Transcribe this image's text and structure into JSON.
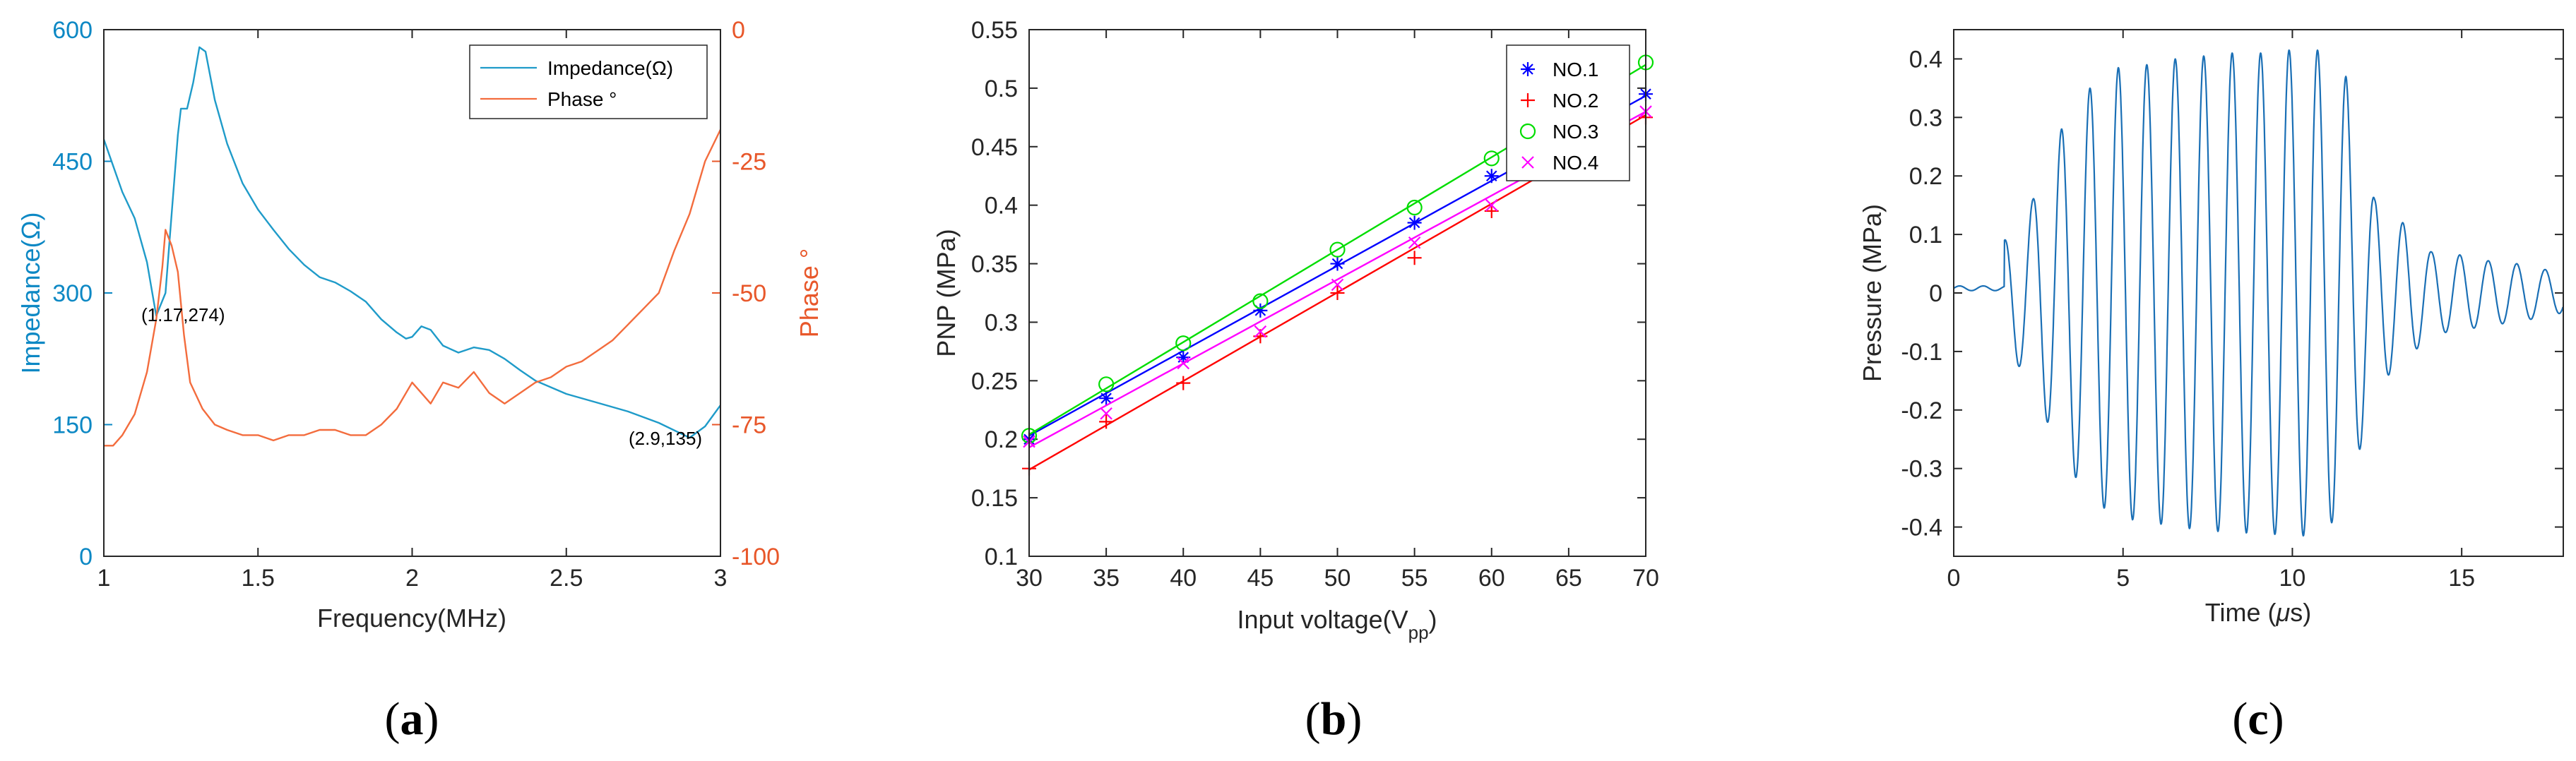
{
  "chart_data": [
    {
      "panel": "a",
      "type": "line",
      "panel_label": "(a)",
      "panel_letter": "a",
      "xlabel": "Frequency(MHz)",
      "ylabel_left": "Impedance(Ω)",
      "ylabel_right": "Phase °",
      "xlim": [
        1,
        3
      ],
      "ylim_left": [
        0,
        600
      ],
      "ylim_right": [
        -100,
        0
      ],
      "xticks": [
        "1",
        "1.5",
        "2",
        "2.5",
        "3"
      ],
      "xtick_values": [
        1,
        1.5,
        2,
        2.5,
        3
      ],
      "yticks_left": [
        "0",
        "150",
        "300",
        "450",
        "600"
      ],
      "ytick_values_left": [
        0,
        150,
        300,
        450,
        600
      ],
      "yticks_right": [
        "-100",
        "-75",
        "-50",
        "-25",
        "0"
      ],
      "ytick_values_right": [
        -100,
        -75,
        -50,
        -25,
        0
      ],
      "colors": {
        "impedance": "#1f9bc9",
        "phase": "#f36c3d",
        "left_axis": "#0d88c4",
        "right_axis": "#e8572a"
      },
      "legend": [
        "Impedance(Ω)",
        "Phase °"
      ],
      "legend_position": "top-right",
      "annotations": [
        {
          "text": "(1.17,274)",
          "x": 1.17,
          "y": 274
        },
        {
          "text": "(2.9,135)",
          "x": 2.9,
          "y": 135
        }
      ],
      "series": [
        {
          "name": "Impedance(Ω)",
          "axis": "left",
          "x": [
            1.0,
            1.03,
            1.06,
            1.1,
            1.14,
            1.17,
            1.2,
            1.22,
            1.24,
            1.25,
            1.27,
            1.29,
            1.31,
            1.33,
            1.36,
            1.4,
            1.45,
            1.5,
            1.55,
            1.6,
            1.65,
            1.7,
            1.75,
            1.8,
            1.85,
            1.9,
            1.95,
            1.98,
            2.0,
            2.03,
            2.06,
            2.1,
            2.15,
            2.2,
            2.25,
            2.3,
            2.35,
            2.4,
            2.5,
            2.6,
            2.7,
            2.8,
            2.9,
            2.95,
            3.0
          ],
          "values": [
            475,
            445,
            415,
            385,
            335,
            274,
            300,
            390,
            480,
            510,
            510,
            540,
            580,
            575,
            520,
            470,
            425,
            395,
            372,
            350,
            332,
            318,
            312,
            302,
            290,
            270,
            255,
            248,
            250,
            262,
            258,
            240,
            232,
            238,
            235,
            225,
            212,
            200,
            185,
            175,
            165,
            152,
            135,
            148,
            172
          ]
        },
        {
          "name": "Phase °",
          "axis": "right",
          "x": [
            1.0,
            1.03,
            1.06,
            1.1,
            1.14,
            1.17,
            1.19,
            1.2,
            1.22,
            1.24,
            1.26,
            1.28,
            1.32,
            1.36,
            1.4,
            1.45,
            1.5,
            1.55,
            1.6,
            1.65,
            1.7,
            1.75,
            1.8,
            1.85,
            1.9,
            1.95,
            2.0,
            2.03,
            2.06,
            2.1,
            2.15,
            2.2,
            2.25,
            2.3,
            2.35,
            2.4,
            2.45,
            2.5,
            2.55,
            2.6,
            2.65,
            2.7,
            2.75,
            2.8,
            2.85,
            2.9,
            2.95,
            3.0
          ],
          "values": [
            -79,
            -79,
            -77,
            -73,
            -65,
            -55,
            -45,
            -38,
            -41,
            -46,
            -58,
            -67,
            -72,
            -75,
            -76,
            -77,
            -77,
            -78,
            -77,
            -77,
            -76,
            -76,
            -77,
            -77,
            -75,
            -72,
            -67,
            -69,
            -71,
            -67,
            -68,
            -65,
            -69,
            -71,
            -69,
            -67,
            -66,
            -64,
            -63,
            -61,
            -59,
            -56,
            -53,
            -50,
            -42,
            -35,
            -25,
            -19
          ]
        }
      ]
    },
    {
      "panel": "b",
      "type": "scatter",
      "panel_label": "(b)",
      "panel_letter": "b",
      "xlabel_main": "Input voltage(V",
      "xlabel_sub": "pp",
      "xlabel_close": ")",
      "ylabel": "PNP (MPa)",
      "xlim": [
        30,
        70
      ],
      "ylim": [
        0.1,
        0.55
      ],
      "xticks": [
        "30",
        "35",
        "40",
        "45",
        "50",
        "55",
        "60",
        "65",
        "70"
      ],
      "xtick_values": [
        30,
        35,
        40,
        45,
        50,
        55,
        60,
        65,
        70
      ],
      "yticks": [
        "0.1",
        "0.15",
        "0.2",
        "0.25",
        "0.3",
        "0.35",
        "0.4",
        "0.45",
        "0.5",
        "0.55"
      ],
      "ytick_values": [
        0.1,
        0.15,
        0.2,
        0.25,
        0.3,
        0.35,
        0.4,
        0.45,
        0.5,
        0.55
      ],
      "legend_position": "top-right",
      "legend": [
        "NO.1",
        "NO.2",
        "NO.3",
        "NO.4"
      ],
      "x": [
        30,
        35,
        40,
        45,
        50,
        55,
        60,
        70
      ],
      "series": [
        {
          "name": "NO.1",
          "marker": "asterisk",
          "color": "#0000ff",
          "values": [
            0.2,
            0.235,
            0.27,
            0.31,
            0.35,
            0.385,
            0.425,
            0.495
          ],
          "fit": [
            0.203,
            0.4935
          ]
        },
        {
          "name": "NO.2",
          "marker": "plus",
          "color": "#ff0000",
          "values": [
            0.175,
            0.215,
            0.248,
            0.288,
            0.325,
            0.355,
            0.395,
            0.475
          ],
          "fit": [
            0.174,
            0.477
          ]
        },
        {
          "name": "NO.3",
          "marker": "circle",
          "color": "#00dd00",
          "values": [
            0.203,
            0.247,
            0.282,
            0.318,
            0.362,
            0.398,
            0.44,
            0.522
          ],
          "fit": [
            0.204,
            0.52
          ]
        },
        {
          "name": "NO.4",
          "marker": "x",
          "color": "#ff00ff",
          "values": [
            0.198,
            0.222,
            0.265,
            0.292,
            0.332,
            0.368,
            0.4,
            0.48
          ],
          "fit": [
            0.193,
            0.48
          ]
        }
      ]
    },
    {
      "panel": "c",
      "type": "line",
      "panel_label": "(c)",
      "panel_letter": "c",
      "xlabel_main": "Time (",
      "xlabel_mu": "μ",
      "xlabel_close": "s)",
      "ylabel": "Pressure (MPa)",
      "xlim": [
        0,
        18
      ],
      "ylim": [
        -0.45,
        0.45
      ],
      "xticks": [
        "0",
        "5",
        "10",
        "15"
      ],
      "xtick_values": [
        0,
        5,
        10,
        15
      ],
      "yticks": [
        "-0.4",
        "-0.3",
        "-0.2",
        "-0.1",
        "0",
        "0.1",
        "0.2",
        "0.3",
        "0.4"
      ],
      "ytick_values": [
        -0.4,
        -0.3,
        -0.2,
        -0.1,
        0,
        0.1,
        0.2,
        0.3,
        0.4
      ],
      "color": "#1a6fb5",
      "series": [
        {
          "name": "Pressure",
          "description": "tone burst, ~1.2 MHz, peaks about ±0.42 MPa near 9.5 μs",
          "start": 1.5,
          "end": 18,
          "frequency": 1.19,
          "peaks": [
            0.09,
            0.16,
            0.28,
            0.35,
            0.385,
            0.39,
            0.4,
            0.405,
            0.41,
            0.41,
            0.415,
            0.415,
            0.37,
            0.16,
            0.12,
            0.07,
            0.065,
            0.055,
            0.05,
            0.04,
            0.03
          ]
        }
      ]
    }
  ]
}
